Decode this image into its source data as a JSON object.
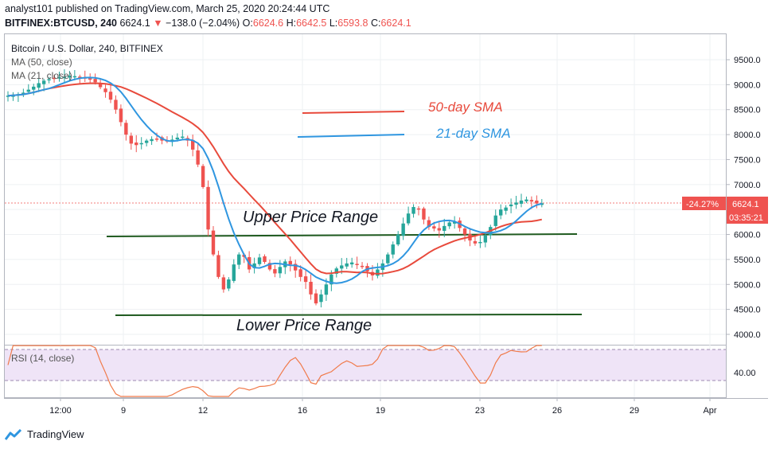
{
  "header": {
    "line1": "analyst101 published on TradingView.com, March 25, 2020 20:24:44 UTC",
    "pair_prefix": "BITFINEX:BTCUSD, 240",
    "price": "6624.1",
    "change": "−138.0 (−2.04%)",
    "open_label": "O:",
    "open": "6624.6",
    "high_label": "H:",
    "high": "6642.5",
    "low_label": "L:",
    "low": "6593.8",
    "close_label": "C:",
    "close": "6624.1"
  },
  "symbol_title": "Bitcoin / U.S. Dollar, 240, BITFINEX",
  "indicators": {
    "ma50": "MA (50, close)",
    "ma21": "MA (21, close)",
    "rsi": "RSI (14, close)"
  },
  "colors": {
    "up": "#26a69a",
    "down": "#ef5350",
    "ma50": "#e84a3c",
    "ma21": "#2f96e0",
    "support": "#1f5a1f",
    "rsi_band": "#efe4f7",
    "rsi_line": "#f07a4a"
  },
  "chart_data": {
    "type": "candlestick",
    "y_ticks": [
      "9500.0",
      "9000.0",
      "8500.0",
      "8000.0",
      "7500.0",
      "7000.0",
      "6500.0",
      "6000.0",
      "5500.0",
      "5000.0",
      "4500.0",
      "4000.0"
    ],
    "y_values": [
      9500,
      9000,
      8500,
      8000,
      7500,
      7000,
      6500,
      6000,
      5500,
      5000,
      4500,
      4000
    ],
    "ylim": [
      3900,
      9800
    ],
    "x_ticks": [
      "12:00",
      "9",
      "12",
      "16",
      "19",
      "23",
      "26",
      "29",
      "Apr"
    ],
    "last_price_label": "6624.1",
    "last_change_label": "-24.27%",
    "countdown_label": "03:35:21",
    "legend_annotations": [
      "50-day SMA",
      "21-day SMA"
    ],
    "annotations": [
      "Upper Price Range",
      "Lower Price Range"
    ],
    "levels": {
      "upper": 6000,
      "lower": 4400
    },
    "rsi": {
      "label": "RSI (14, close)",
      "tick": "40.00",
      "upper_band": 70,
      "lower_band": 30
    },
    "closes": [
      8780,
      8790,
      8810,
      8840,
      8900,
      8960,
      9030,
      9080,
      9110,
      9120,
      9150,
      9160,
      9180,
      9170,
      9160,
      9140,
      9100,
      9050,
      8950,
      8850,
      8700,
      8500,
      8250,
      8000,
      7820,
      7790,
      7830,
      7880,
      7910,
      7920,
      7880,
      7870,
      7900,
      7940,
      7960,
      7880,
      7700,
      7400,
      6950,
      6100,
      5600,
      5150,
      4900,
      5100,
      5400,
      5600,
      5550,
      5300,
      5420,
      5540,
      5450,
      5300,
      5220,
      5350,
      5460,
      5400,
      5280,
      5150,
      5050,
      4800,
      4620,
      4800,
      5000,
      5200,
      5320,
      5380,
      5420,
      5440,
      5400,
      5360,
      5260,
      5180,
      5300,
      5420,
      5600,
      5800,
      6000,
      6220,
      6420,
      6550,
      6500,
      6300,
      6150,
      6120,
      6080,
      6170,
      6240,
      6250,
      6130,
      6000,
      5880,
      5820,
      5850,
      5980,
      6150,
      6380,
      6500,
      6540,
      6600,
      6640,
      6680,
      6700,
      6660,
      6620,
      6624
    ]
  },
  "footer": {
    "brand": "TradingView"
  }
}
